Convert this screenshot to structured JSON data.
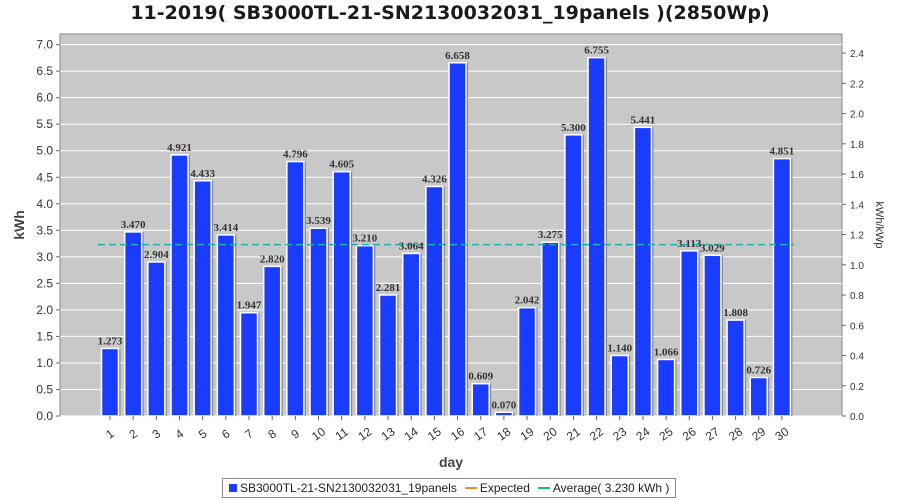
{
  "chart_data": {
    "type": "bar",
    "title": "11-2019( SB3000TL-21-SN2130032031_19panels )(2850Wp)",
    "xlabel": "day",
    "ylabel": "kWh",
    "y2label": "kWh/kWp",
    "ylim": [
      0,
      7.2
    ],
    "y2lim": [
      0,
      2.5263
    ],
    "yticks": [
      "0.0",
      "0.5",
      "1.0",
      "1.5",
      "2.0",
      "2.5",
      "3.0",
      "3.5",
      "4.0",
      "4.5",
      "5.0",
      "5.5",
      "6.0",
      "6.5",
      "7.0"
    ],
    "y2ticks": [
      "0.0",
      "0.2",
      "0.4",
      "0.6",
      "0.8",
      "1.0",
      "1.2",
      "1.4",
      "1.6",
      "1.8",
      "2.0",
      "2.2",
      "2.4"
    ],
    "categories": [
      "1",
      "2",
      "3",
      "4",
      "5",
      "6",
      "7",
      "8",
      "9",
      "10",
      "11",
      "12",
      "13",
      "14",
      "15",
      "16",
      "17",
      "18",
      "19",
      "20",
      "21",
      "22",
      "23",
      "24",
      "25",
      "26",
      "27",
      "28",
      "29",
      "30"
    ],
    "series": [
      {
        "name": "SB3000TL-21-SN2130032031_19panels",
        "values": [
          1.273,
          3.47,
          2.904,
          4.921,
          4.433,
          3.414,
          1.947,
          2.82,
          4.796,
          3.539,
          4.605,
          3.21,
          2.281,
          3.064,
          4.326,
          6.658,
          0.609,
          0.07,
          2.042,
          3.275,
          5.3,
          6.755,
          1.14,
          5.441,
          1.066,
          3.113,
          3.029,
          1.808,
          0.726,
          4.851
        ],
        "labels": [
          "1.273",
          "3.470",
          "2.904",
          "4.921",
          "4.433",
          "3.414",
          "1.947",
          "2.820",
          "4.796",
          "3.539",
          "4.605",
          "3.210",
          "2.281",
          "3.064",
          "4.326",
          "6.658",
          "0.609",
          "0.070",
          "2.042",
          "3.275",
          "5.300",
          "6.755",
          "1.140",
          "5.441",
          "1.066",
          "3.113",
          "3.029",
          "1.808",
          "0.726",
          "4.851"
        ],
        "color": "#1a3cff"
      }
    ],
    "average": 3.23,
    "average_color": "#20b2aa",
    "expected_color": "#f28c28",
    "plot_background": "#c8c8c8",
    "grid": true,
    "legend_position": "bottom",
    "legend": [
      {
        "label": "SB3000TL-21-SN2130032031_19panels",
        "kind": "box",
        "color": "#1a3cff"
      },
      {
        "label": "Expected",
        "kind": "line",
        "color": "#f28c28"
      },
      {
        "label": "Average( 3.230 kWh )",
        "kind": "line",
        "color": "#20b2aa"
      }
    ]
  }
}
